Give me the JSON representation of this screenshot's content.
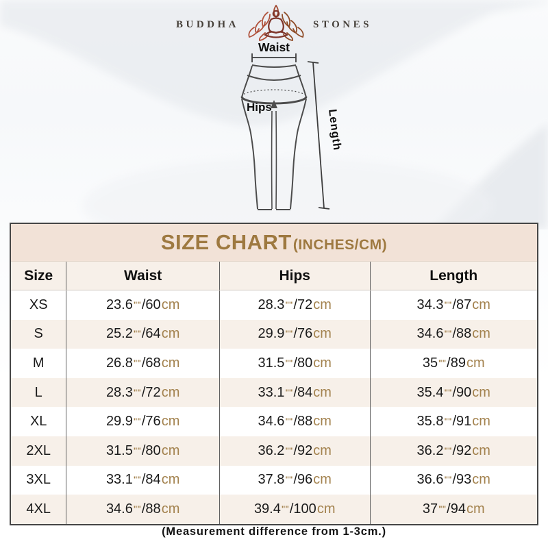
{
  "brand": {
    "name_left": "BUDDHA",
    "name_right": "STONES",
    "logo_icon": "lotus-meditation-icon"
  },
  "diagram": {
    "waist_label": "Waist",
    "hips_label": "Hips",
    "length_label": "Length"
  },
  "size_chart": {
    "title": "SIZE CHART",
    "subtitle": "(INCHES/CM)",
    "columns": [
      "Size",
      "Waist",
      "Hips",
      "Length"
    ],
    "inch_mark": "\"",
    "separator": "/",
    "cm_unit": "cm",
    "rows": [
      {
        "size": "XS",
        "waist": {
          "in": "23.6",
          "cm": "60"
        },
        "hips": {
          "in": "28.3",
          "cm": "72"
        },
        "length": {
          "in": "34.3",
          "cm": "87"
        }
      },
      {
        "size": "S",
        "waist": {
          "in": "25.2",
          "cm": "64"
        },
        "hips": {
          "in": "29.9",
          "cm": "76"
        },
        "length": {
          "in": "34.6",
          "cm": "88"
        }
      },
      {
        "size": "M",
        "waist": {
          "in": "26.8",
          "cm": "68"
        },
        "hips": {
          "in": "31.5",
          "cm": "80"
        },
        "length": {
          "in": "35",
          "cm": "89"
        }
      },
      {
        "size": "L",
        "waist": {
          "in": "28.3",
          "cm": "72"
        },
        "hips": {
          "in": "33.1",
          "cm": "84"
        },
        "length": {
          "in": "35.4",
          "cm": "90"
        }
      },
      {
        "size": "XL",
        "waist": {
          "in": "29.9",
          "cm": "76"
        },
        "hips": {
          "in": "34.6",
          "cm": "88"
        },
        "length": {
          "in": "35.8",
          "cm": "91"
        }
      },
      {
        "size": "2XL",
        "waist": {
          "in": "31.5",
          "cm": "80"
        },
        "hips": {
          "in": "36.2",
          "cm": "92"
        },
        "length": {
          "in": "36.2",
          "cm": "92"
        }
      },
      {
        "size": "3XL",
        "waist": {
          "in": "33.1",
          "cm": "84"
        },
        "hips": {
          "in": "37.8",
          "cm": "96"
        },
        "length": {
          "in": "36.6",
          "cm": "93"
        }
      },
      {
        "size": "4XL",
        "waist": {
          "in": "34.6",
          "cm": "88"
        },
        "hips": {
          "in": "39.4",
          "cm": "100"
        },
        "length": {
          "in": "37",
          "cm": "94"
        }
      }
    ]
  },
  "footer": {
    "note": "(Measurement difference from 1-3cm.)"
  },
  "colors": {
    "title_text": "#9e7940",
    "title_bg": "#f2e2d7",
    "row_alt_bg": "#f7f0e9",
    "unit_gold": "#a3824e",
    "logo_red": "#8a3a2b"
  }
}
